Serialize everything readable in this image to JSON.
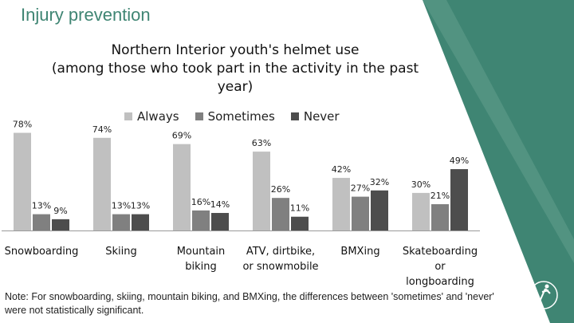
{
  "slide_title": "Injury prevention",
  "note": "Note: For snowboarding, skiing, mountain biking, and BMXing, the differences between 'sometimes' and 'never' were not statistically significant.",
  "colors": {
    "always": "#c0c0c0",
    "sometimes": "#808080",
    "never": "#4d4d4d",
    "accent": "#3f8573"
  },
  "chart_data": {
    "type": "bar",
    "title_lines": [
      "Northern Interior youth's helmet use",
      "(among those who took part in the activity in the past",
      "year)"
    ],
    "categories": [
      [
        "Snowboarding"
      ],
      [
        "Skiing"
      ],
      [
        "Mountain",
        "biking"
      ],
      [
        "ATV, dirtbike,",
        "or snowmobile"
      ],
      [
        "BMXing"
      ],
      [
        "Skateboarding",
        "or",
        "longboarding"
      ]
    ],
    "series": [
      {
        "name": "Always",
        "values": [
          78,
          74,
          69,
          63,
          42,
          30
        ],
        "labels": [
          "78%",
          "74%",
          "69%",
          "63%",
          "42%",
          "30%"
        ]
      },
      {
        "name": "Sometimes",
        "values": [
          13,
          13,
          16,
          26,
          27,
          21
        ],
        "labels": [
          "13%",
          "13%",
          "16%",
          "26%",
          "27%",
          "21%"
        ]
      },
      {
        "name": "Never",
        "values": [
          9,
          13,
          14,
          11,
          32,
          49
        ],
        "labels": [
          "9%",
          "13%",
          "14%",
          "11%",
          "32%",
          "49%"
        ]
      }
    ],
    "ylim": [
      0,
      100
    ],
    "legend": "top",
    "grid": false
  }
}
